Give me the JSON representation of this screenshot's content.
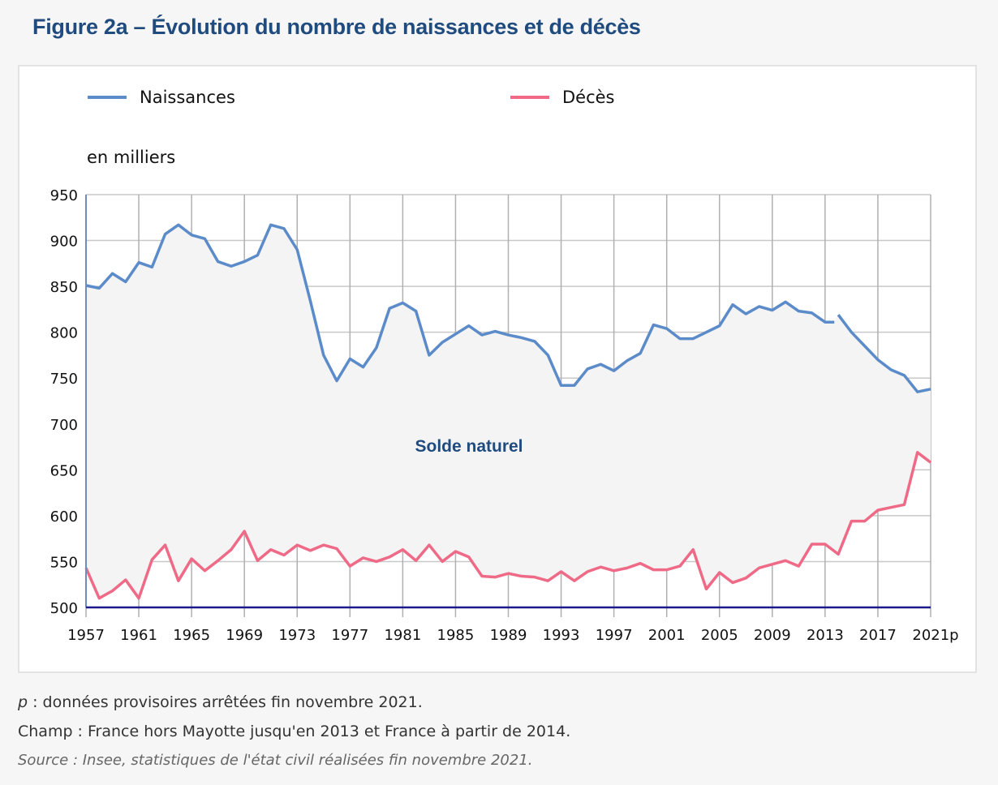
{
  "figure": {
    "title": "Figure 2a – Évolution du nombre de naissances et de décès"
  },
  "notes": {
    "p_marker": "p",
    "provisional": " : données provisoires arrêtées fin novembre 2021.",
    "champ": "Champ : France hors Mayotte jusqu'en 2013 et France à partir de 2014.",
    "source": "Source : Insee, statistiques de l'état civil réalisées fin novembre 2021."
  },
  "chart_data": {
    "type": "line",
    "title": "Figure 2a – Évolution du nombre de naissances et de décès",
    "xlabel": "",
    "ylabel": "en milliers",
    "ylim": [
      500,
      950
    ],
    "xlim": [
      1957,
      2021
    ],
    "yticks": [
      500,
      550,
      600,
      650,
      700,
      750,
      800,
      850,
      900,
      950
    ],
    "xticks": [
      "1957",
      "1961",
      "1965",
      "1969",
      "1973",
      "1977",
      "1981",
      "1985",
      "1989",
      "1993",
      "1997",
      "2001",
      "2005",
      "2009",
      "2013",
      "2017",
      "2021p"
    ],
    "grid": true,
    "legend": "top",
    "annotation": "Solde naturel",
    "colors": {
      "births": "#5b8bc9",
      "deaths": "#ef6a87",
      "fill": "#f4f4f4",
      "baseline": "#1a1a8c",
      "annotation": "#1f4b7e"
    },
    "series": [
      {
        "name": "Naissances",
        "segments": [
          {
            "scope": "France hors Mayotte",
            "x": [
              1957,
              1958,
              1959,
              1960,
              1961,
              1962,
              1963,
              1964,
              1965,
              1966,
              1967,
              1968,
              1969,
              1970,
              1971,
              1972,
              1973,
              1974,
              1975,
              1976,
              1977,
              1978,
              1979,
              1980,
              1981,
              1982,
              1983,
              1984,
              1985,
              1986,
              1987,
              1988,
              1989,
              1990,
              1991,
              1992,
              1993,
              1994,
              1995,
              1996,
              1997,
              1998,
              1999,
              2000,
              2001,
              2002,
              2003,
              2004,
              2005,
              2006,
              2007,
              2008,
              2009,
              2010,
              2011,
              2012,
              2013,
              2013.7
            ],
            "y": [
              851,
              848,
              864,
              855,
              876,
              871,
              907,
              917,
              906,
              902,
              877,
              872,
              877,
              884,
              917,
              913,
              890,
              834,
              775,
              747,
              771,
              762,
              783,
              826,
              832,
              823,
              775,
              789,
              798,
              807,
              797,
              801,
              797,
              794,
              790,
              775,
              742,
              742,
              760,
              765,
              758,
              769,
              777,
              808,
              804,
              793,
              793,
              800,
              807,
              830,
              820,
              828,
              824,
              833,
              823,
              821,
              811,
              811
            ]
          },
          {
            "scope": "France",
            "x": [
              2014,
              2015,
              2016,
              2017,
              2018,
              2019,
              2020,
              2021
            ],
            "y": [
              819,
              800,
              785,
              770,
              759,
              753,
              735,
              738
            ]
          }
        ]
      },
      {
        "name": "Décès",
        "segments": [
          {
            "scope": "France",
            "x": [
              1957,
              1958,
              1959,
              1960,
              1961,
              1962,
              1963,
              1964,
              1965,
              1966,
              1967,
              1968,
              1969,
              1970,
              1971,
              1972,
              1973,
              1974,
              1975,
              1976,
              1977,
              1978,
              1979,
              1980,
              1981,
              1982,
              1983,
              1984,
              1985,
              1986,
              1987,
              1988,
              1989,
              1990,
              1991,
              1992,
              1993,
              1994,
              1995,
              1996,
              1997,
              1998,
              1999,
              2000,
              2001,
              2002,
              2003,
              2004,
              2005,
              2006,
              2007,
              2008,
              2009,
              2010,
              2011,
              2012,
              2013,
              2014,
              2015,
              2016,
              2017,
              2018,
              2019,
              2020,
              2021
            ],
            "y": [
              543,
              510,
              518,
              530,
              510,
              552,
              568,
              529,
              553,
              540,
              551,
              563,
              583,
              551,
              563,
              557,
              568,
              562,
              568,
              564,
              545,
              554,
              550,
              555,
              563,
              551,
              568,
              550,
              561,
              555,
              534,
              533,
              537,
              534,
              533,
              529,
              539,
              529,
              539,
              544,
              540,
              543,
              548,
              541,
              541,
              545,
              563,
              520,
              538,
              527,
              532,
              543,
              547,
              551,
              545,
              569,
              569,
              558,
              594,
              594,
              606,
              609,
              612,
              669,
              658
            ]
          }
        ]
      }
    ]
  }
}
